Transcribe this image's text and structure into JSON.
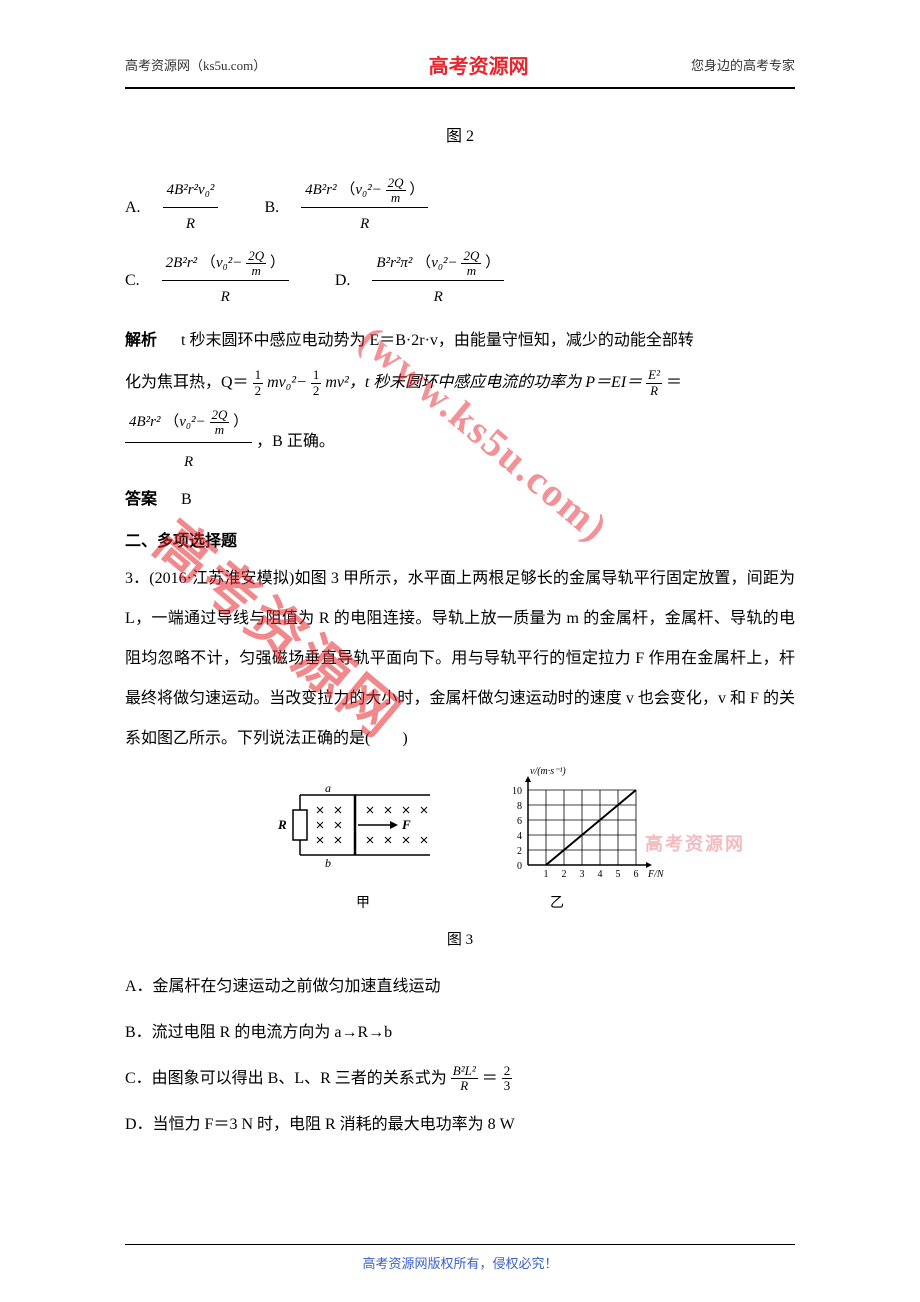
{
  "header": {
    "left": "高考资源网（ks5u.com）",
    "center": "高考资源网",
    "right": "您身边的高考专家"
  },
  "fig2_label": "图 2",
  "options": {
    "A": {
      "label": "A.",
      "num": "4B²r²v₀²",
      "den": "R"
    },
    "B": {
      "label": "B.",
      "num_left": "4B²r²",
      "num_paren_v": "v₀²−",
      "num_frac_up": "2Q",
      "num_frac_dn": "m",
      "den": "R"
    },
    "C": {
      "label": "C.",
      "num_left": "2B²r²",
      "num_paren_v": "v₀²−",
      "num_frac_up": "2Q",
      "num_frac_dn": "m",
      "den": "R"
    },
    "D": {
      "label": "D.",
      "num_left": "B²r²π²",
      "num_paren_v": "v₀²−",
      "num_frac_up": "2Q",
      "num_frac_dn": "m",
      "den": "R"
    }
  },
  "analysis": {
    "label": "解析",
    "line1_a": "t 秒末圆环中感应电动势为 E＝B·2r·v，由能量守恒知，减少的动能全部转",
    "line2_a": "化为焦耳热，Q＝",
    "half1_num": "1",
    "half1_den": "2",
    "mv0": "mv₀²−",
    "half2_num": "1",
    "half2_den": "2",
    "mv": "mv²，t 秒末圆环中感应电流的功率为 P＝EI＝",
    "e2_num": "E²",
    "e2_den": "R",
    "eq": "＝",
    "final_num_left": "4B²r²",
    "final_paren_v": "v₀²−",
    "final_frac_up": "2Q",
    "final_frac_dn": "m",
    "final_den": "R",
    "tail": "，B 正确。"
  },
  "answer_label": "答案",
  "answer_value": "B",
  "section2_title": "二、多项选择题",
  "q3": {
    "prefix": "3．(2016·江苏淮安模拟)如图 3 甲所示，水平面上两根足够长的金属导轨平行固定放置，间距为 L，一端通过导线与阻值为 R 的电阻连接。导轨上放一质量为 m 的金属杆，金属杆、导轨的电阻均忽略不计，匀强磁场垂直导轨平面向下。用与导轨平行的恒定拉力 F 作用在金属杆上，杆最终将做匀速运动。当改变拉力的大小时，金属杆做匀速运动时的速度 v 也会变化，v 和 F 的关系如图乙所示。下列说法正确的是(　　)"
  },
  "circuit": {
    "a_label": "a",
    "b_label": "b",
    "R_label": "R",
    "F_label": "F",
    "caption": "甲"
  },
  "graph": {
    "y_label": "v/(m·s⁻¹)",
    "x_label": "F/N",
    "y_ticks": [
      "0",
      "2",
      "4",
      "6",
      "8",
      "10"
    ],
    "x_ticks": [
      "1",
      "2",
      "3",
      "4",
      "5",
      "6"
    ],
    "line_points": [
      [
        1,
        0
      ],
      [
        6,
        10
      ]
    ],
    "caption": "乙",
    "grid_color": "#000000",
    "line_color": "#000000",
    "bg_color": "#ffffff"
  },
  "fig3_label": "图 3",
  "q3_options": {
    "A": "A．金属杆在匀速运动之前做匀加速直线运动",
    "B": "B．流过电阻 R 的电流方向为 a→R→b",
    "C_pre": "C．由图象可以得出 B、L、R 三者的关系式为",
    "C_frac1_num": "B²L²",
    "C_frac1_den": "R",
    "C_eq": "＝",
    "C_frac2_num": "2",
    "C_frac2_den": "3",
    "D": "D．当恒力 F＝3 N 时，电阻 R 消耗的最大电功率为 8 W"
  },
  "watermarks": {
    "main": "高考资源网",
    "url": "(www.ks5u.com)",
    "small": "高考资源网"
  },
  "footer": "高考资源网版权所有，侵权必究！"
}
